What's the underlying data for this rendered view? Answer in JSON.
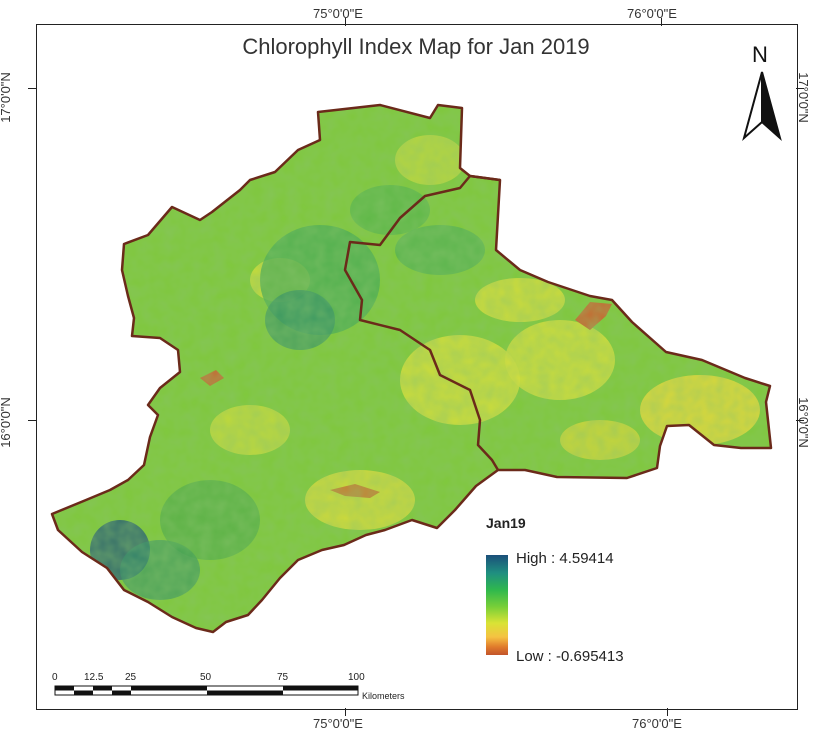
{
  "map": {
    "title": "Chlorophyll Index Map for Jan 2019",
    "north_label": "N",
    "coords": {
      "top_75": "75°0'0\"E",
      "top_76": "76°0'0\"E",
      "bottom_75": "75°0'0\"E",
      "bottom_76": "76°0'0\"E",
      "left_17": "17°0'0\"N",
      "left_16": "16°0'0\"N",
      "right_17": "17°0'0\"N",
      "right_16": "16°0'0\"N"
    },
    "legend": {
      "title": "Jan19",
      "high": "High : 4.59414",
      "low": "Low : -0.695413",
      "colors": [
        "#1b4f7a",
        "#2fb84d",
        "#d9e335",
        "#f5c242",
        "#c2552b"
      ]
    },
    "scale": {
      "ticks": [
        "0",
        "12.5",
        "25",
        "50",
        "75",
        "100"
      ],
      "unit": "Kilometers"
    },
    "colors": {
      "boundary": "#6b2a1a",
      "green": "#6cc43a",
      "yellow": "#d8df3c",
      "teal": "#2f8c6a",
      "orange": "#c8652e"
    }
  }
}
